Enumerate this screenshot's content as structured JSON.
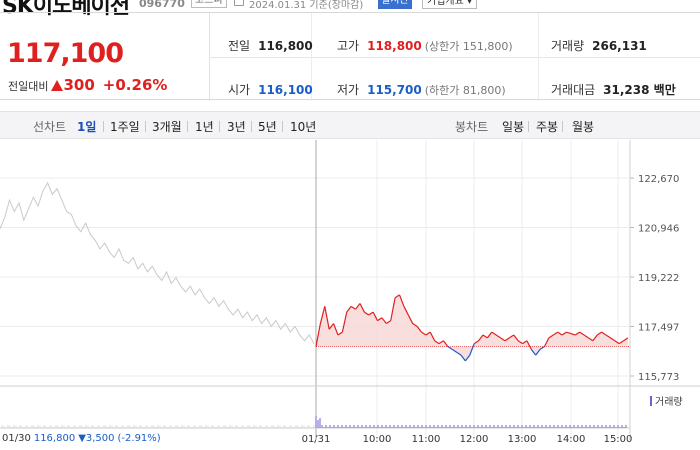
{
  "header": {
    "name": "SK이노베이션",
    "code": "096770",
    "market": "코스피",
    "date": "2024.01.31 기준(장마감)",
    "realtime_label": "실시간",
    "company_label": "기업개요 ▾"
  },
  "quote": {
    "price": "117,100",
    "change_label": "전일대비",
    "change_value": "300",
    "change_percent": "+0.26%",
    "prev_close": {
      "label": "전일",
      "value": "116,800"
    },
    "high": {
      "label": "고가",
      "value": "118,800",
      "sub": "(상한가 151,800)"
    },
    "volume": {
      "label": "거래량",
      "value": "266,131"
    },
    "open": {
      "label": "시가",
      "value": "116,100"
    },
    "low": {
      "label": "저가",
      "value": "115,700",
      "sub": "(하한가 81,800)"
    },
    "amount": {
      "label": "거래대금",
      "value": "31,238 백만"
    }
  },
  "tabs": {
    "line_chart_label": "선차트",
    "line_periods": [
      "1일",
      "1주일",
      "3개월",
      "1년",
      "3년",
      "5년",
      "10년"
    ],
    "active_period": "1일",
    "candle_chart_label": "봉차트",
    "candle_periods": [
      "일봉",
      "주봉",
      "월봉"
    ]
  },
  "chart_data": {
    "type": "line",
    "y_ticks": [
      "122,670",
      "120,946",
      "119,222",
      "117,497",
      "115,773"
    ],
    "x_ticks": [
      "01/31",
      "10:00",
      "11:00",
      "12:00",
      "13:00",
      "14:00",
      "15:00"
    ],
    "reference_price": 116800,
    "ylim": [
      115773,
      122670
    ],
    "prev_day_info": {
      "date": "01/30",
      "price": "116,800",
      "change": "▼3,500",
      "change_pct": "(-2.91%)"
    },
    "volume_label": "거래량",
    "colors": {
      "up": "#e0201f",
      "down": "#1a5dc8",
      "prev": "#c9c9c9",
      "volume": "#7a5ccf"
    },
    "prev_day_series": [
      120900,
      121300,
      121900,
      121500,
      121800,
      121200,
      121600,
      122000,
      121700,
      122200,
      122500,
      122100,
      122300,
      121900,
      121500,
      121400,
      121000,
      120800,
      121100,
      120700,
      120500,
      120200,
      120400,
      120100,
      119900,
      120200,
      119800,
      119700,
      119900,
      119500,
      119700,
      119400,
      119600,
      119300,
      119100,
      119400,
      119000,
      119200,
      118900,
      118700,
      118900,
      118600,
      118800,
      118500,
      118300,
      118500,
      118200,
      118400,
      118100,
      117900,
      118100,
      117800,
      118000,
      117700,
      117900,
      117600,
      117800,
      117500,
      117700,
      117400,
      117600,
      117300,
      117500,
      117200,
      117000,
      117200,
      116900
    ],
    "today_series": [
      116800,
      117600,
      118200,
      117400,
      117600,
      117200,
      117300,
      118000,
      118200,
      118100,
      118300,
      118000,
      117900,
      118000,
      117700,
      117800,
      117600,
      117700,
      118500,
      118600,
      118200,
      117900,
      117600,
      117500,
      117300,
      117200,
      117300,
      117000,
      116900,
      117000,
      116800,
      116700,
      116600,
      116500,
      116300,
      116500,
      116900,
      117000,
      117200,
      117100,
      117300,
      117200,
      117100,
      117000,
      117100,
      117200,
      117000,
      116900,
      117000,
      116700,
      116500,
      116700,
      116800,
      117100,
      117200,
      117300,
      117200,
      117300,
      117250,
      117200,
      117300,
      117200,
      117100,
      117000,
      117200,
      117300,
      117200,
      117100,
      117000,
      116900,
      117000,
      117100
    ]
  }
}
